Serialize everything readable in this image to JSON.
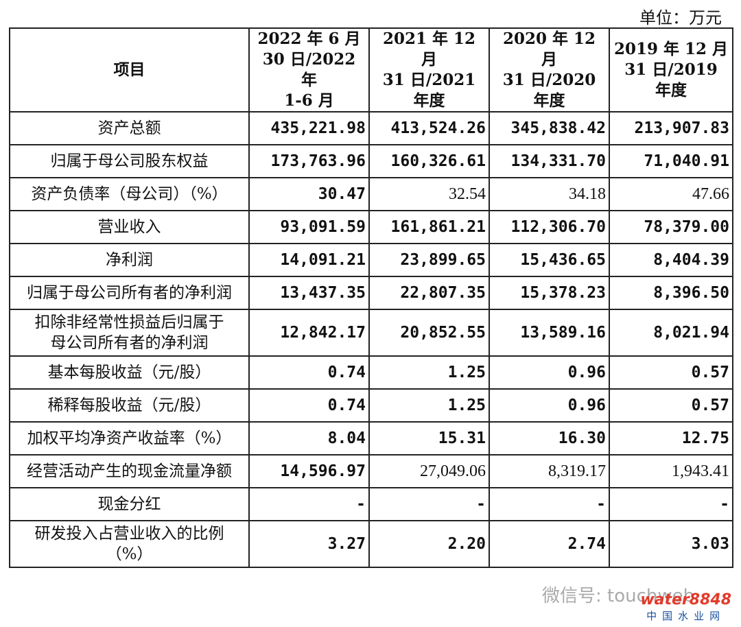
{
  "unit": "单位：万元",
  "table": {
    "header": [
      [
        "项目"
      ],
      [
        "2022 年 6 月",
        "30 日/2022 年",
        "1-6 月"
      ],
      [
        "2021 年 12 月",
        "31 日/2021",
        "年度"
      ],
      [
        "2020 年 12 月",
        "31 日/2020",
        "年度"
      ],
      [
        "2019 年 12 月",
        "31 日/2019",
        "年度"
      ]
    ],
    "rows": [
      [
        [
          "资产总额"
        ],
        "435,221.98",
        "413,524.26",
        "345,838.42",
        "213,907.83"
      ],
      [
        [
          "归属于母公司股东权益"
        ],
        "173,763.96",
        "160,326.61",
        "134,331.70",
        "71,040.91"
      ],
      [
        [
          "资产负债率（母公司）（%）"
        ],
        "30.47",
        "32.54",
        "34.18",
        "47.66"
      ],
      [
        [
          "营业收入"
        ],
        "93,091.59",
        "161,861.21",
        "112,306.70",
        "78,379.00"
      ],
      [
        [
          "净利润"
        ],
        "14,091.21",
        "23,899.65",
        "15,436.65",
        "8,404.39"
      ],
      [
        [
          "归属于母公司所有者的净利润"
        ],
        "13,437.35",
        "22,807.35",
        "15,378.23",
        "8,396.50"
      ],
      [
        [
          "扣除非经常性损益后归属于",
          "母公司所有者的净利润"
        ],
        "12,842.17",
        "20,852.55",
        "13,589.16",
        "8,021.94"
      ],
      [
        [
          "基本每股收益（元/股）"
        ],
        "0.74",
        "1.25",
        "0.96",
        "0.57"
      ],
      [
        [
          "稀释每股收益（元/股）"
        ],
        "0.74",
        "1.25",
        "0.96",
        "0.57"
      ],
      [
        [
          "加权平均净资产收益率（%）"
        ],
        "8.04",
        "15.31",
        "16.30",
        "12.75"
      ],
      [
        [
          "经营活动产生的现金流量净额"
        ],
        "14,596.97",
        "27,049.06",
        "8,319.17",
        "1,943.41"
      ],
      [
        [
          "现金分红"
        ],
        "-",
        "-",
        "-",
        "-"
      ],
      [
        [
          "研发投入占营业收入的比例",
          "（%）"
        ],
        "3.27",
        "2.20",
        "2.74",
        "3.03"
      ]
    ]
  },
  "watermark": "微信号: touchweb",
  "logo": [
    "water8848",
    "中国水业网"
  ]
}
